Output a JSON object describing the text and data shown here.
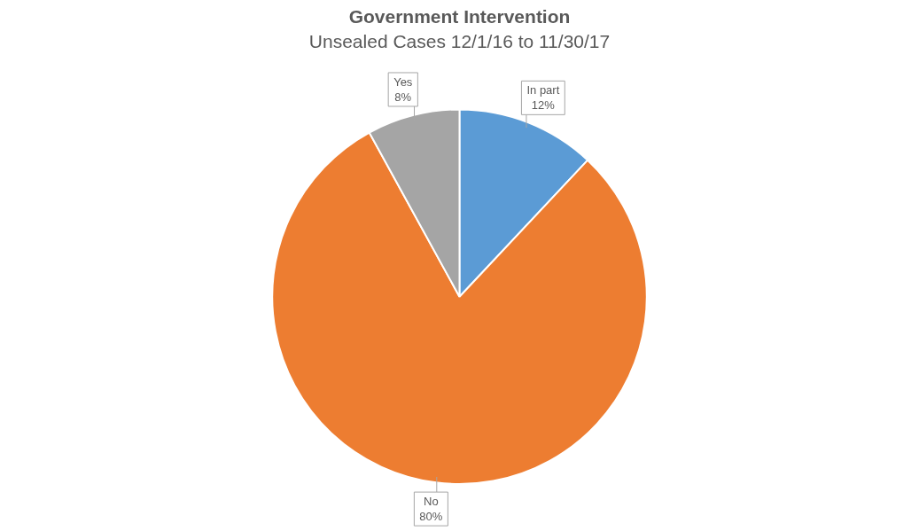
{
  "chart_data": {
    "type": "pie",
    "title": "Government Intervention",
    "subtitle": "Unsealed Cases 12/1/16 to 11/30/17",
    "categories": [
      "In part",
      "No",
      "Yes"
    ],
    "values": [
      12,
      80,
      8
    ],
    "colors": [
      "#5b9bd5",
      "#ed7d31",
      "#a5a5a5"
    ],
    "value_labels": [
      "12%",
      "80%",
      "8%"
    ]
  }
}
